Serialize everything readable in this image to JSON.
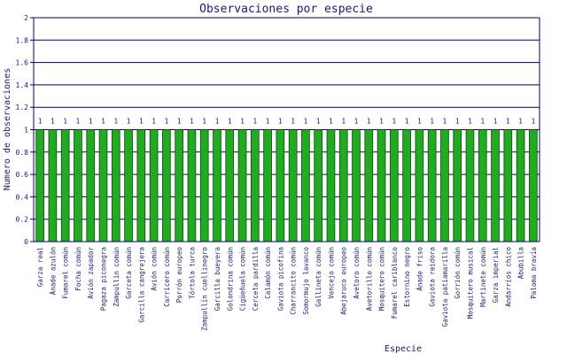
{
  "chart_data": {
    "type": "bar",
    "title": "Observaciones por especie",
    "xlabel": "Especie",
    "ylabel": "Numero de observaciones",
    "ylim": [
      0,
      2
    ],
    "yticks": [
      "0",
      "0.2",
      "0.4",
      "0.6",
      "0.8",
      "1",
      "1.2",
      "1.4",
      "1.6",
      "1.8",
      "2"
    ],
    "grid": true,
    "legend": "none",
    "bar_color": "#22aa22",
    "bar_edge_color": "#0a4a0a",
    "axis_color": "#000066",
    "text_color": "#1a1a6e",
    "categories": [
      "Garza real",
      "Ánade azulón",
      "Fumarel común",
      "Focha común",
      "Avión zapador",
      "Pagaza piconegra",
      "Zampullín común",
      "Garceta común",
      "Garcilla cangrejera",
      "Avión común",
      "Carricero común",
      "Porrón europeo",
      "Tórtola turca",
      "Zampullín cuellinegro",
      "Garcilla bueyera",
      "Golondrina común",
      "Cigüeñuela común",
      "Cerceta pardilla",
      "Calamón común",
      "Gaviota picofina",
      "Charrancito común",
      "Somormujo lavanco",
      "Gallineta común",
      "Vencejo común",
      "Abejaruco europeo",
      "Avetoro común",
      "Avetorillo común",
      "Mosquitero común",
      "Fumarel cariblanco",
      "Estornino negro",
      "Ánade friso",
      "Gaviota reidora",
      "Gaviota patiamarilla",
      "Gorrión común",
      "Mosquitero musical",
      "Martinete común",
      "Garza imperial",
      "Andarríos chico",
      "Abubilla",
      "Paloma bravía"
    ],
    "values": [
      1,
      1,
      1,
      1,
      1,
      1,
      1,
      1,
      1,
      1,
      1,
      1,
      1,
      1,
      1,
      1,
      1,
      1,
      1,
      1,
      1,
      1,
      1,
      1,
      1,
      1,
      1,
      1,
      1,
      1,
      1,
      1,
      1,
      1,
      1,
      1,
      1,
      1,
      1,
      1
    ],
    "value_labels": [
      "1",
      "1",
      "1",
      "1",
      "1",
      "1",
      "1",
      "1",
      "1",
      "1",
      "1",
      "1",
      "1",
      "1",
      "1",
      "1",
      "1",
      "1",
      "1",
      "1",
      "1",
      "1",
      "1",
      "1",
      "1",
      "1",
      "1",
      "1",
      "1",
      "1",
      "1",
      "1",
      "1",
      "1",
      "1",
      "1",
      "1",
      "1",
      "1",
      "1"
    ]
  }
}
